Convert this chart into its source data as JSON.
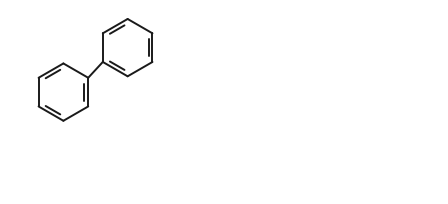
{
  "background": "#ffffff",
  "line_color": "#1a1a1a",
  "line_width": 1.4,
  "figsize": [
    4.48,
    2.04
  ],
  "dpi": 100,
  "xlim": [
    0,
    9.0
  ],
  "ylim": [
    0,
    4.1
  ]
}
